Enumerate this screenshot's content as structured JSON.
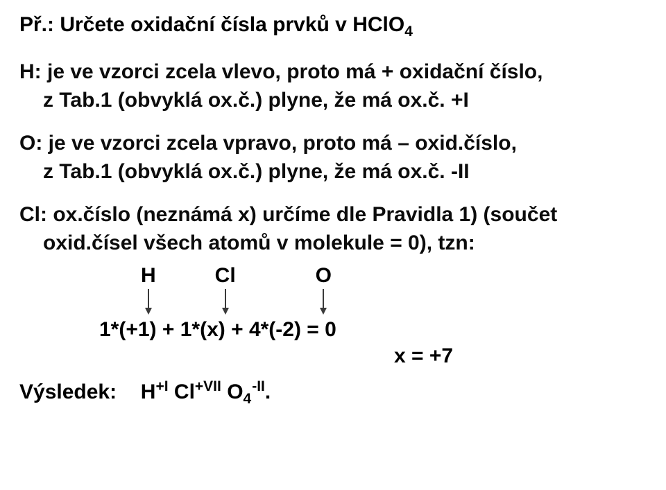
{
  "title_prefix": "Př.: Určete oxidační čísla prvků v HClO",
  "title_sub": "4",
  "h_line1": "H: je ve vzorci zcela vlevo, proto má + oxidační číslo,",
  "h_line2": "z Tab.1 (obvyklá ox.č.) plyne, že má ox.č.  +I",
  "o_line1": "O: je ve vzorci zcela vpravo, proto má – oxid.číslo,",
  "o_line2": "z Tab.1 (obvyklá ox.č.) plyne, že má ox.č.  -II",
  "cl_line1": "Cl: ox.číslo (neznámá x) určíme dle Pravidla 1) (součet",
  "cl_line2": "oxid.čísel všech atomů v molekule = 0), tzn:",
  "elems": {
    "h": "H",
    "cl": "Cl",
    "o": "O"
  },
  "arrow": {
    "stroke": "#3a3a3a",
    "stroke_width": 2,
    "length": 38,
    "head_w": 10,
    "head_h": 10
  },
  "eq_row1": "1*(+1)  +  1*(x)  +  4*(-2)  =  0",
  "eq_row2": "x  =  +7",
  "result_label": "Výsledek:",
  "result_parts": {
    "H": "H",
    "H_sup": "+I",
    "Cl": "Cl",
    "Cl_sup": "+VII",
    "O": "O",
    "O_sub": "4",
    "O_sup": "-II",
    "dot": "."
  },
  "layout": {
    "hco_left_pad": 175,
    "col_gap": 85,
    "eq_left_pad": 115,
    "eq2_left_pad": 540,
    "result_gap": 18
  },
  "colors": {
    "text": "#000000",
    "bg": "#ffffff"
  }
}
